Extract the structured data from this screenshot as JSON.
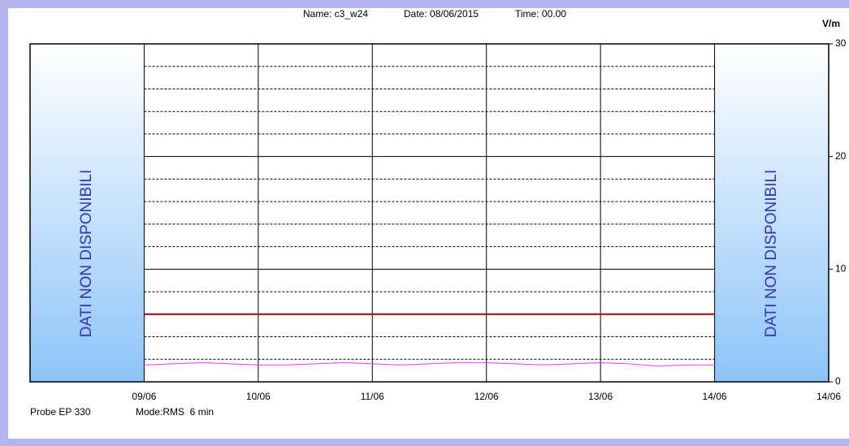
{
  "header": {
    "name": "Name: c3_w24",
    "date": "Date: 08/06/2015",
    "time": "Time: 00.00"
  },
  "chart_data": {
    "type": "line",
    "unit": "V/m",
    "band_label": "DATI NON DISPONIBILI",
    "xtick_labels": [
      "09/06",
      "10/06",
      "11/06",
      "12/06",
      "13/06",
      "14/06",
      "14/06"
    ],
    "ylim": [
      0,
      30
    ],
    "yticks": [
      0,
      10,
      20,
      30
    ],
    "minor_yticks": [
      2,
      4,
      6,
      8,
      12,
      14,
      16,
      18,
      22,
      24,
      26,
      28
    ],
    "series": [
      {
        "color": "#a00000",
        "values": [
          6,
          6
        ]
      },
      {
        "color": "#ff33ff",
        "values": [
          1.5,
          1.6,
          1.7,
          1.6,
          1.5,
          1.5,
          1.6,
          1.7,
          1.6,
          1.5,
          1.6,
          1.7,
          1.7,
          1.6,
          1.5,
          1.6,
          1.7,
          1.6,
          1.4,
          1.5,
          1.5
        ]
      }
    ]
  },
  "footer": {
    "probe": "Probe EP 330",
    "mode": "Mode:RMS  6 min"
  }
}
